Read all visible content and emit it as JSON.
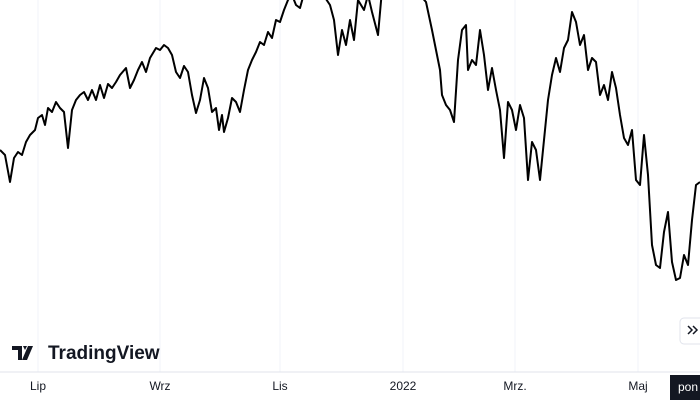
{
  "chart_data": {
    "type": "line",
    "color": "#000000",
    "x": [
      0,
      5,
      10,
      14,
      18,
      22,
      26,
      30,
      35,
      38,
      42,
      45,
      48,
      52,
      56,
      60,
      64,
      68,
      72,
      76,
      80,
      84,
      88,
      92,
      96,
      100,
      104,
      108,
      112,
      116,
      120,
      126,
      130,
      134,
      138,
      142,
      146,
      150,
      156,
      160,
      164,
      168,
      172,
      176,
      180,
      184,
      188,
      192,
      196,
      200,
      204,
      208,
      212,
      216,
      219,
      222,
      224,
      228,
      232,
      236,
      240,
      244,
      248,
      252,
      256,
      260,
      264,
      268,
      272,
      276,
      280,
      284,
      288,
      292,
      296,
      300,
      305,
      310,
      320,
      330,
      334,
      338,
      342,
      346,
      350,
      354,
      358,
      364,
      368,
      372,
      378,
      382,
      390,
      400,
      410,
      420,
      426,
      432,
      436,
      440,
      442,
      446,
      450,
      454,
      458,
      462,
      466,
      468,
      472,
      476,
      480,
      484,
      488,
      492,
      496,
      500,
      504,
      508,
      512,
      516,
      520,
      524,
      528,
      532,
      536,
      540,
      544,
      548,
      552,
      556,
      560,
      564,
      568,
      572,
      576,
      580,
      584,
      588,
      592,
      596,
      600,
      604,
      608,
      612,
      616,
      620,
      624,
      628,
      632,
      636,
      640,
      644,
      648,
      652,
      656,
      660,
      664,
      668,
      672,
      676,
      680,
      684,
      688,
      692,
      696,
      700
    ],
    "values": [
      220,
      215,
      188,
      212,
      218,
      215,
      228,
      235,
      240,
      252,
      255,
      245,
      262,
      258,
      268,
      262,
      258,
      222,
      260,
      270,
      275,
      278,
      270,
      280,
      270,
      285,
      272,
      286,
      282,
      288,
      295,
      302,
      282,
      290,
      300,
      308,
      298,
      312,
      322,
      320,
      325,
      322,
      315,
      298,
      292,
      304,
      298,
      275,
      257,
      270,
      292,
      282,
      258,
      262,
      240,
      255,
      238,
      252,
      272,
      268,
      258,
      280,
      300,
      310,
      318,
      328,
      325,
      338,
      332,
      350,
      348,
      360,
      370,
      375,
      365,
      362,
      380,
      375,
      380,
      365,
      350,
      315,
      340,
      325,
      350,
      330,
      370,
      360,
      375,
      358,
      335,
      380,
      380,
      385,
      390,
      375,
      368,
      340,
      320,
      300,
      275,
      265,
      260,
      248,
      310,
      340,
      345,
      300,
      310,
      305,
      340,
      315,
      280,
      302,
      280,
      260,
      212,
      268,
      260,
      240,
      265,
      252,
      190,
      228,
      220,
      190,
      230,
      270,
      295,
      312,
      298,
      322,
      330,
      358,
      348,
      325,
      335,
      300,
      312,
      308,
      275,
      285,
      270,
      298,
      282,
      255,
      232,
      225,
      240,
      190,
      185,
      235,
      195,
      125,
      105,
      102,
      138,
      158,
      108,
      90,
      92,
      115,
      105,
      150,
      185,
      188
    ],
    "xlim": [
      0,
      700
    ],
    "ylim": [
      0,
      370
    ],
    "xticks": [
      {
        "value": 38,
        "label": "Lip"
      },
      {
        "value": 160,
        "label": "Wrz"
      },
      {
        "value": 280,
        "label": "Lis"
      },
      {
        "value": 403,
        "label": "2022"
      },
      {
        "value": 515,
        "label": "Mrz."
      },
      {
        "value": 638,
        "label": "Maj"
      }
    ],
    "grid": true,
    "crosshair_label": "pon",
    "logo": "TradingView"
  }
}
